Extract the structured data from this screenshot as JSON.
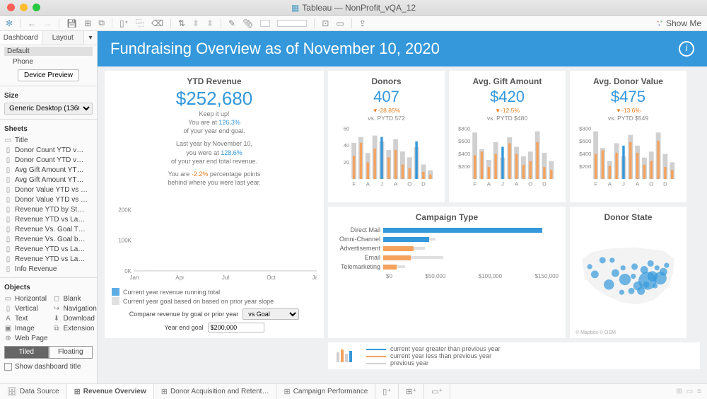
{
  "window": {
    "title": "Tableau — NonProfit_vQA_12"
  },
  "showme": "Show Me",
  "sidebar": {
    "tabs": [
      "Dashboard",
      "Layout"
    ],
    "default_label": "Default",
    "phone": "Phone",
    "device_preview": "Device Preview",
    "size_hdr": "Size",
    "size_value": "Generic Desktop (1366 x 7…",
    "sheets_hdr": "Sheets",
    "sheets": [
      "Title",
      "Donor Count YTD v…",
      "Donor Count YTD v…",
      "Avg Gift Amount YT…",
      "Avg Gift Amount YT…",
      "Donor Value YTD vs …",
      "Donor Value YTD vs …",
      "Revenue YTD by St…",
      "Revenue YTD vs La…",
      "Revenue Vs. Goal T…",
      "Revenue Vs. Goal b…",
      "Revenue YTD vs La…",
      "Revenue YTD vs La…",
      "Info Revenue"
    ],
    "objects_hdr": "Objects",
    "objects": [
      [
        "Horizontal",
        "Blank"
      ],
      [
        "Vertical",
        "Navigation"
      ],
      [
        "Text",
        "Download"
      ],
      [
        "Image",
        "Extension"
      ],
      [
        "Web Page",
        ""
      ]
    ],
    "seg": [
      "Tiled",
      "Floating"
    ],
    "show_title": "Show dashboard title"
  },
  "banner_text": "Fundraising Overview as of November 10, 2020",
  "ytd": {
    "title": "YTD Revenue",
    "value": "$252,680",
    "l1": "Keep it up!",
    "l2a": "You are at ",
    "l2b": "126.3%",
    "l3": "of your year end goal.",
    "l4": "Last year by November 10,",
    "l5a": "you were at ",
    "l5b": "128.6%",
    "l6": "of your year end total revenue.",
    "l7a": "You are ",
    "l7b": "-2.2%",
    "l7c": " percentage points",
    "l8": "behind where you were last year.",
    "chart": {
      "ymax": 250000,
      "yticks": [
        0,
        100000,
        200000
      ],
      "yticklabels": [
        "0K",
        "100K",
        "200K"
      ],
      "xlabels": [
        "Jan",
        "Apr",
        "Jul",
        "Oct",
        "Jan"
      ],
      "area_color": "#5dade2",
      "goal_color": "#c9c9c9",
      "area": [
        0,
        4,
        10,
        20,
        32,
        48,
        66,
        90,
        118,
        150,
        186,
        225,
        252
      ],
      "goal": [
        0,
        14,
        28,
        42,
        56,
        70,
        84,
        98,
        112,
        126,
        140,
        154,
        168,
        182,
        196
      ]
    },
    "legend1": "Current year revenue running total",
    "legend2": "Current year goal based on based on prior year slope",
    "cmp_label": "Compare revenue by goal or prior year",
    "cmp_value": "vs Goal",
    "yeg_label": "Year end goal",
    "yeg_value": "$200,000"
  },
  "kpis": [
    {
      "title": "Donors",
      "value": "407",
      "delta": "-28.85%",
      "sub": "vs. PYTD 572",
      "yticks": [
        "20",
        "40",
        "60"
      ],
      "ymax": 70,
      "bars": [
        [
          50,
          32
        ],
        [
          58,
          50
        ],
        [
          36,
          23
        ],
        [
          60,
          42
        ],
        [
          52,
          58
        ],
        [
          40,
          30
        ],
        [
          55,
          40
        ],
        [
          38,
          20
        ],
        [
          30,
          15
        ],
        [
          44,
          52
        ],
        [
          20,
          10
        ],
        [
          12,
          6
        ]
      ]
    },
    {
      "title": "Avg. Gift Amount",
      "value": "$420",
      "delta": "-12.5%",
      "sub": "vs. PYTD $480",
      "yticks": [
        "$200",
        "$400",
        "$600",
        "$800"
      ],
      "ymax": 850,
      "bars": [
        [
          780,
          400
        ],
        [
          500,
          460
        ],
        [
          320,
          200
        ],
        [
          620,
          420
        ],
        [
          360,
          540
        ],
        [
          700,
          600
        ],
        [
          540,
          420
        ],
        [
          380,
          240
        ],
        [
          460,
          300
        ],
        [
          800,
          620
        ],
        [
          440,
          200
        ],
        [
          300,
          150
        ]
      ]
    },
    {
      "title": "Avg. Donor Value",
      "value": "$475",
      "delta": "-13.6%",
      "sub": "vs. PYTD $549",
      "yticks": [
        "$200",
        "$400",
        "$600",
        "$800"
      ],
      "ymax": 850,
      "bars": [
        [
          800,
          420
        ],
        [
          520,
          480
        ],
        [
          300,
          220
        ],
        [
          600,
          440
        ],
        [
          380,
          560
        ],
        [
          740,
          620
        ],
        [
          560,
          440
        ],
        [
          360,
          240
        ],
        [
          460,
          300
        ],
        [
          780,
          640
        ],
        [
          420,
          200
        ],
        [
          280,
          150
        ]
      ]
    }
  ],
  "kpi_xlabels": [
    "F",
    "A",
    "J",
    "A",
    "O",
    "D"
  ],
  "kpi_colors": {
    "blue": "#3498db",
    "orange": "#f5a25d",
    "ghost": "#d0d0d0"
  },
  "campaign": {
    "title": "Campaign Type",
    "max": 160000,
    "rows": [
      [
        "Direct Mail",
        145000,
        128000,
        "#3498db",
        "#e0e0e0"
      ],
      [
        "Omni-Channel",
        42000,
        48000,
        "#3498db",
        "#e0e0e0"
      ],
      [
        "Advertisement",
        28000,
        38000,
        "#f5a25d",
        "#e0e0e0"
      ],
      [
        "Email",
        25000,
        55000,
        "#f5a25d",
        "#e0e0e0"
      ],
      [
        "Telemarketing",
        12000,
        20000,
        "#f5a25d",
        "#e0e0e0"
      ]
    ],
    "axis": [
      "$0",
      "$50,000",
      "$100,000",
      "$150,000"
    ]
  },
  "map": {
    "title": "Donor State",
    "attr": "© Mapbox © OSM",
    "bubble_color": "#3498db",
    "bubbles": [
      [
        110,
        62,
        14
      ],
      [
        118,
        55,
        8
      ],
      [
        95,
        70,
        7
      ],
      [
        105,
        45,
        6
      ],
      [
        130,
        58,
        10
      ],
      [
        90,
        40,
        5
      ],
      [
        75,
        60,
        9
      ],
      [
        60,
        50,
        6
      ],
      [
        50,
        68,
        8
      ],
      [
        40,
        30,
        5
      ],
      [
        28,
        52,
        6
      ],
      [
        20,
        40,
        4
      ],
      [
        115,
        35,
        5
      ],
      [
        125,
        42,
        4
      ],
      [
        100,
        78,
        6
      ],
      [
        85,
        78,
        5
      ],
      [
        70,
        80,
        4
      ],
      [
        55,
        30,
        4
      ],
      [
        135,
        48,
        6
      ],
      [
        140,
        38,
        4
      ],
      [
        88,
        55,
        4
      ],
      [
        72,
        42,
        4
      ],
      [
        108,
        68,
        5
      ],
      [
        122,
        70,
        4
      ]
    ]
  },
  "legend": {
    "a": "current year greater than previous year",
    "b": "current year less than previous year",
    "c": "previous year"
  },
  "tabs": {
    "datasource": "Data Source",
    "items": [
      "Revenue Overview",
      "Donor Acquisition and Retent…",
      "Campaign Performance"
    ]
  }
}
